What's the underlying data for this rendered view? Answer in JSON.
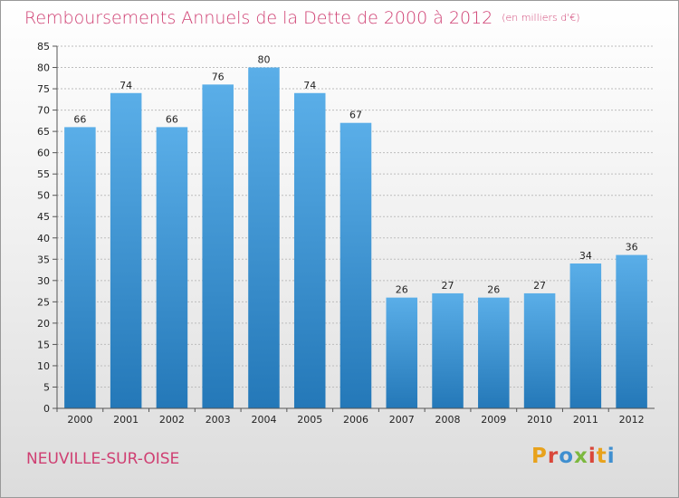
{
  "header": {
    "title": "Remboursements Annuels de la Dette de 2000 à 2012",
    "unit": "(en milliers d'€)"
  },
  "footer": {
    "commune": "NEUVILLE-SUR-OISE",
    "logo_text": "Proxiti"
  },
  "colors": {
    "title": "#cf3f72",
    "bar_top": "#5aaee8",
    "bar_bottom": "#2478b8",
    "grid": "#bdbdbd"
  },
  "chart_data": {
    "type": "bar",
    "title": "Remboursements Annuels de la Dette de 2000 à 2012",
    "categories": [
      "2000",
      "2001",
      "2002",
      "2003",
      "2004",
      "2005",
      "2006",
      "2007",
      "2008",
      "2009",
      "2010",
      "2011",
      "2012"
    ],
    "values": [
      66,
      74,
      66,
      76,
      80,
      74,
      67,
      26,
      27,
      26,
      27,
      34,
      36
    ],
    "ylim": [
      0,
      85
    ],
    "yticks": [
      0,
      5,
      10,
      15,
      20,
      25,
      30,
      35,
      40,
      45,
      50,
      55,
      60,
      65,
      70,
      75,
      80,
      85
    ],
    "grid": true
  }
}
